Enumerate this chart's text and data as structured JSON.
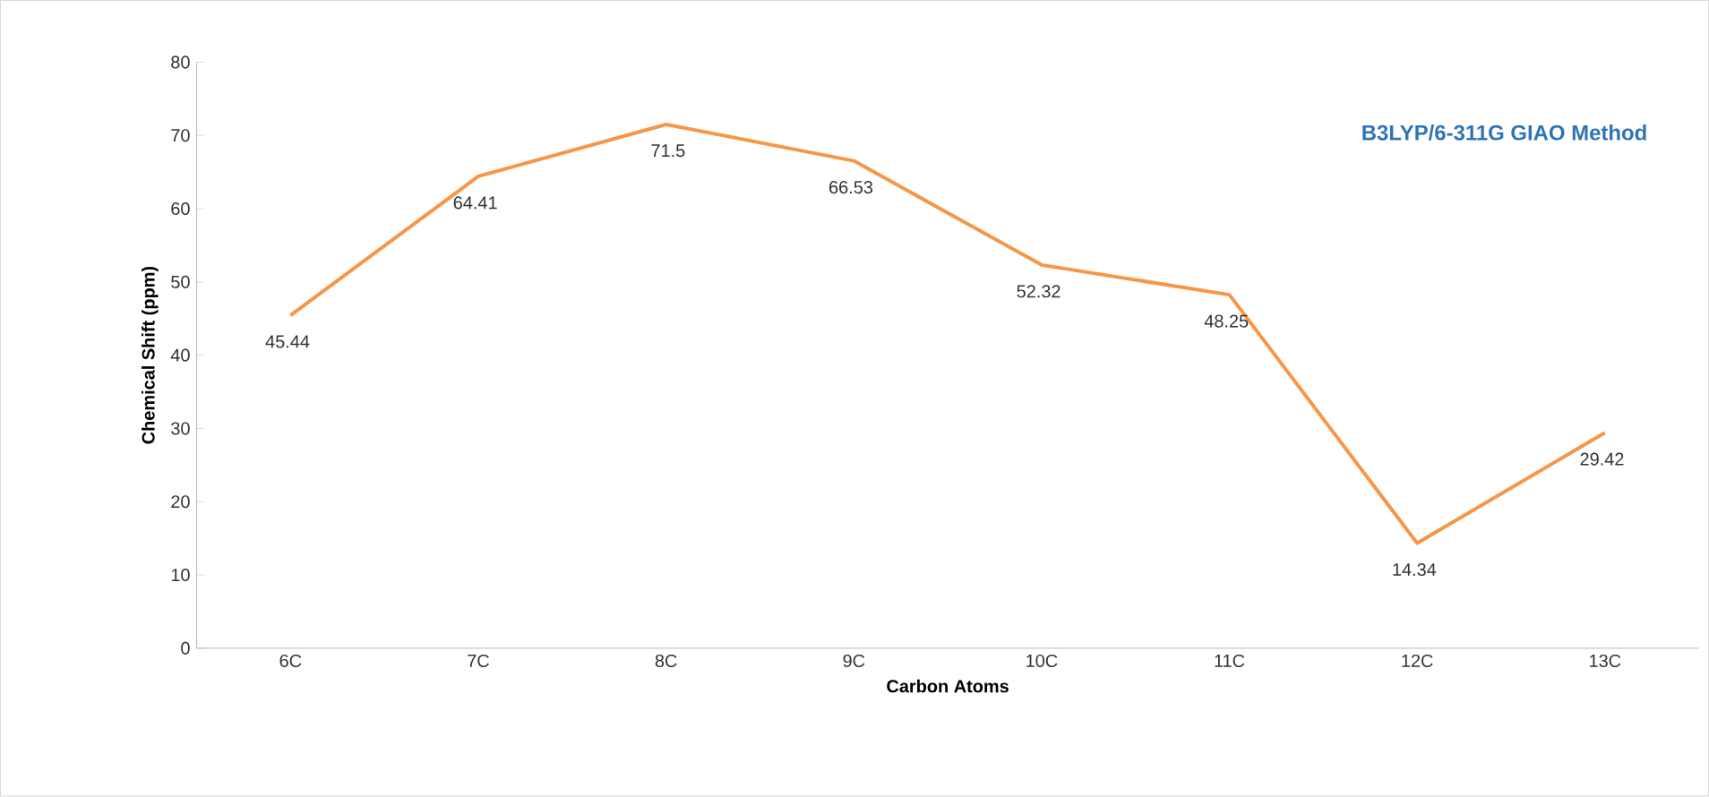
{
  "chart_data": {
    "type": "line",
    "xlabel": "Carbon Atoms",
    "ylabel": "Chemical Shift (ppm)",
    "annotations": [
      "B3LYP/6-311G GIAO Method"
    ],
    "categories": [
      "6C",
      "7C",
      "8C",
      "9C",
      "10C",
      "11C",
      "12C",
      "13C"
    ],
    "values": [
      45.44,
      64.41,
      71.5,
      66.53,
      52.32,
      48.25,
      14.34,
      29.42
    ],
    "color": "#f79646",
    "ylim": [
      0,
      80
    ],
    "yticks": [
      0,
      10,
      20,
      30,
      40,
      50,
      60,
      70,
      80
    ],
    "data_labels": true
  }
}
